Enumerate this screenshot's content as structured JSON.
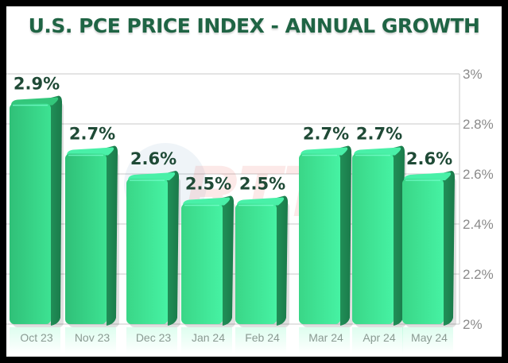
{
  "chart_data": {
    "type": "bar",
    "title": "U.S. PCE PRICE INDEX - ANNUAL GROWTH",
    "xlabel": "",
    "ylabel": "",
    "categories": [
      "Oct 23",
      "Nov 23",
      "Dec 23",
      "Jan 24",
      "Feb 24",
      "Mar 24",
      "Apr 24",
      "May 24"
    ],
    "values": [
      2.9,
      2.7,
      2.6,
      2.5,
      2.5,
      2.7,
      2.7,
      2.6
    ],
    "data_labels": [
      "2.9%",
      "2.7%",
      "2.6%",
      "2.5%",
      "2.5%",
      "2.7%",
      "2.7%",
      "2.6%"
    ],
    "ylim": [
      2.0,
      3.0
    ],
    "yticks": [
      2.0,
      2.2,
      2.4,
      2.6,
      2.8,
      3.0
    ],
    "ytick_labels": [
      "2%",
      "2.2%",
      "2.4%",
      "2.6%",
      "2.8%",
      "3%"
    ],
    "y_axis_position": "right",
    "grid": true,
    "legend": "none",
    "watermark": "RTT"
  },
  "colors": {
    "title": "#1f6444",
    "label": "#1f4a36",
    "bar_light_start": "#3fd98b",
    "bar_light_end": "#45f5a4",
    "bar_side_start": "#1f8a54",
    "bar_side_end": "#25a967",
    "grid": "#c8c8c8",
    "tick_text": "#8a8a8a",
    "category_text": "#8a9a92"
  }
}
